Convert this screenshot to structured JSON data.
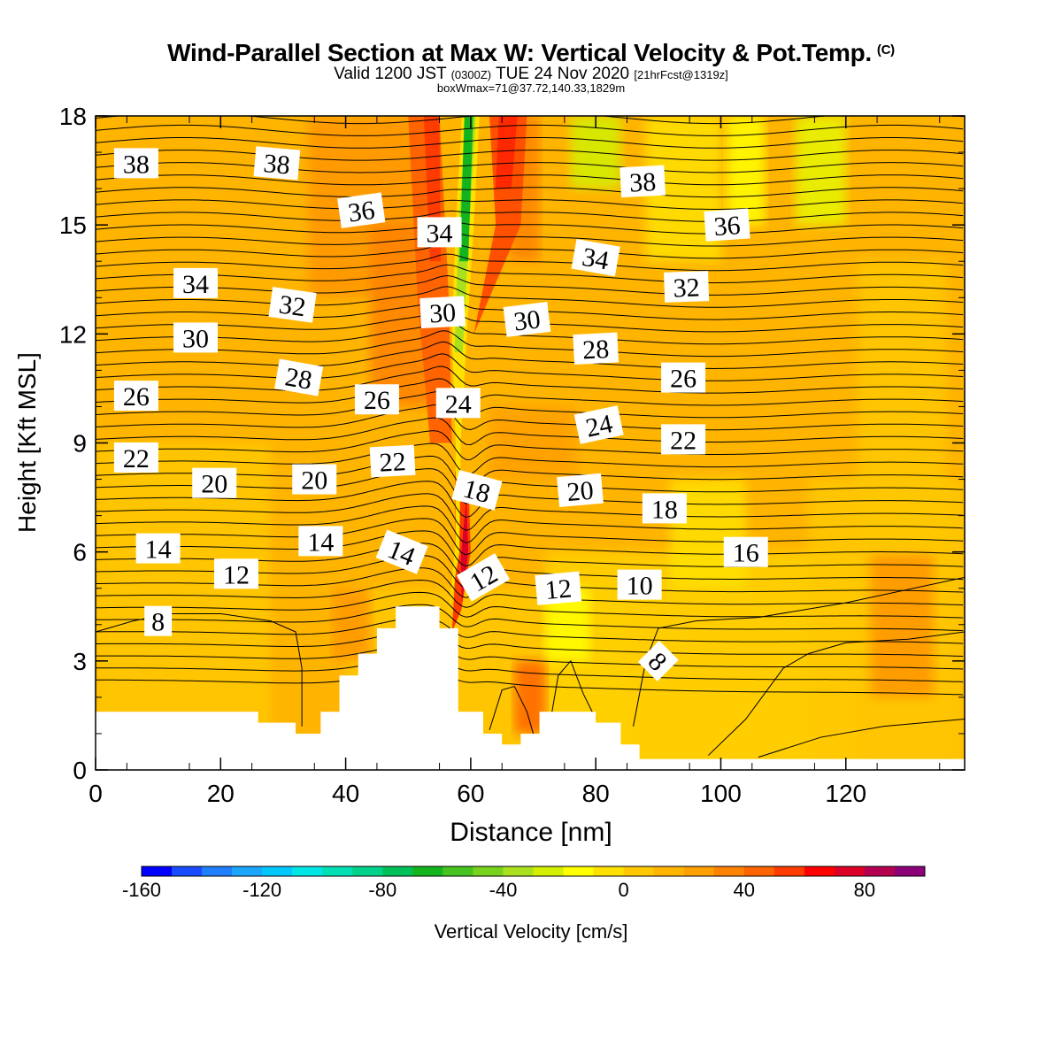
{
  "chart_data": {
    "type": "contour",
    "title": "Wind-Parallel Section at Max W: Vertical Velocity & Pot.Temp.",
    "title_mark": "(C)",
    "subtitle_valid": "Valid 1200 JST",
    "subtitle_utc": "(0300Z)",
    "subtitle_date": "TUE 24 Nov 2020",
    "subtitle_fcst": "[21hrFcst@1319z]",
    "subtitle_box": "boxWmax=71@37.72,140.33,1829m",
    "xlabel": "Distance [nm]",
    "ylabel": "Height [Kft MSL]",
    "xlim": [
      0,
      139
    ],
    "ylim": [
      0,
      18
    ],
    "x_ticks": [
      "0",
      "20",
      "40",
      "60",
      "80",
      "100",
      "120"
    ],
    "y_ticks": [
      "0",
      "3",
      "6",
      "9",
      "12",
      "15",
      "18"
    ],
    "colorbar": {
      "label": "Vertical Velocity [cm/s]",
      "ticks": [
        "-160",
        "-120",
        "-80",
        "-40",
        "0",
        "40",
        "80"
      ],
      "min": -160,
      "max": 100,
      "step": 10,
      "colors": [
        "#0000ff",
        "#1a4cff",
        "#1f7fff",
        "#1aa6ff",
        "#00c8ff",
        "#00e6e6",
        "#00e0b4",
        "#00d28c",
        "#00c05a",
        "#14b41e",
        "#46c31e",
        "#78d21e",
        "#aae11e",
        "#d2f000",
        "#ffff00",
        "#ffe100",
        "#ffc800",
        "#ffb400",
        "#ffa000",
        "#ff8200",
        "#ff6400",
        "#ff3c00",
        "#ff0000",
        "#dc0028",
        "#b40050",
        "#8c0078",
        "#64008c"
      ]
    },
    "theta_labels": [
      "38",
      "38",
      "36",
      "34",
      "38",
      "36",
      "34",
      "34",
      "32",
      "32",
      "30",
      "30",
      "30",
      "28",
      "28",
      "26",
      "26",
      "26",
      "24",
      "24",
      "22",
      "22",
      "22",
      "20",
      "20",
      "18",
      "20",
      "18",
      "14",
      "14",
      "14",
      "12",
      "12",
      "12",
      "10",
      "16",
      "8",
      "8"
    ],
    "terrain_kft": [
      [
        0,
        1.6
      ],
      [
        26,
        1.6
      ],
      [
        26,
        1.3
      ],
      [
        32,
        1.3
      ],
      [
        32,
        1.0
      ],
      [
        36,
        1.0
      ],
      [
        36,
        1.6
      ],
      [
        39,
        1.6
      ],
      [
        39,
        2.6
      ],
      [
        42,
        2.6
      ],
      [
        42,
        3.2
      ],
      [
        45,
        3.2
      ],
      [
        45,
        3.9
      ],
      [
        48,
        3.9
      ],
      [
        48,
        4.5
      ],
      [
        55,
        4.5
      ],
      [
        55,
        3.9
      ],
      [
        58,
        3.9
      ],
      [
        58,
        1.6
      ],
      [
        62,
        1.6
      ],
      [
        62,
        1.0
      ],
      [
        65,
        1.0
      ],
      [
        65,
        0.7
      ],
      [
        68,
        0.7
      ],
      [
        68,
        1.0
      ],
      [
        71,
        1.0
      ],
      [
        71,
        1.6
      ],
      [
        80,
        1.6
      ],
      [
        80,
        1.3
      ],
      [
        84,
        1.3
      ],
      [
        84,
        0.7
      ],
      [
        87,
        0.7
      ],
      [
        87,
        0.3
      ],
      [
        139,
        0.3
      ]
    ]
  }
}
